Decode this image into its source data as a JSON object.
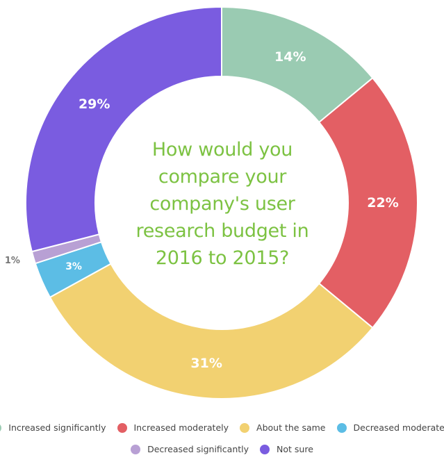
{
  "chart_data": {
    "type": "pie",
    "variant": "donut",
    "title_lines": [
      "How would you",
      "compare your",
      "company's user",
      "research budget in",
      "2016 to 2015?"
    ],
    "legend_placement": "bottom",
    "slices": [
      {
        "name": "Increased significantly",
        "value": 14,
        "label": "14%",
        "color": "#9acbb2"
      },
      {
        "name": "Increased moderately",
        "value": 22,
        "label": "22%",
        "color": "#e35f64"
      },
      {
        "name": "About the same",
        "value": 31,
        "label": "31%",
        "color": "#f2d171"
      },
      {
        "name": "Decreased moderately",
        "value": 3,
        "label": "3%",
        "color": "#5cbde5"
      },
      {
        "name": "Decreased significantly",
        "value": 1,
        "label": "1%",
        "color": "#b8a0d4"
      },
      {
        "name": "Not sure",
        "value": 29,
        "label": "29%",
        "color": "#7a5ce0"
      }
    ]
  }
}
